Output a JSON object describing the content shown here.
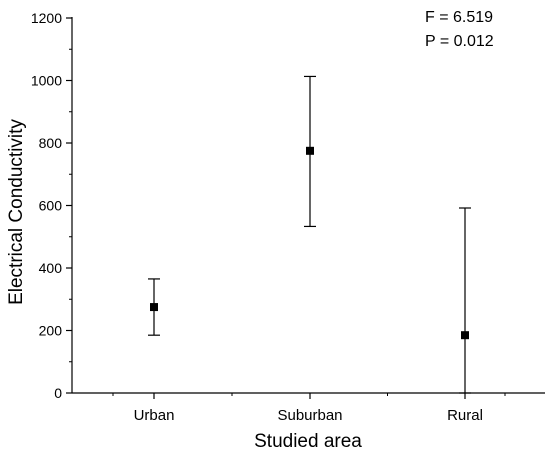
{
  "chart_data": {
    "type": "scatter",
    "title": "",
    "xlabel": "Studied area",
    "ylabel": "Electrical Conductivity",
    "categories": [
      "Urban",
      "Suburban",
      "Rural"
    ],
    "series": [
      {
        "values": [
          275,
          775,
          185
        ],
        "error_low": [
          185,
          533,
          0
        ],
        "error_high": [
          365,
          1013,
          592
        ]
      }
    ],
    "ylim": [
      0,
      1200
    ],
    "yticks": [
      "0",
      "200",
      "400",
      "600",
      "800",
      "1000",
      "1200"
    ],
    "grid": false,
    "legend": "none",
    "annotations": [
      "F = 6.519",
      "P = 0.012"
    ],
    "colors": {
      "marker": "#000000",
      "axis": "#000000"
    }
  }
}
